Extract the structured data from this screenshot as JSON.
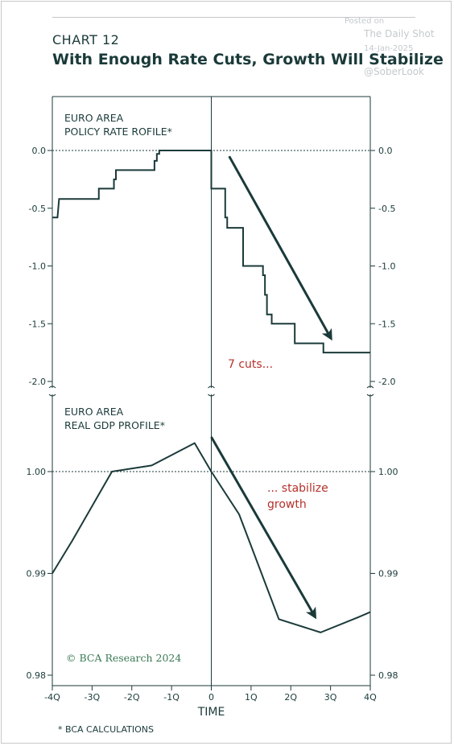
{
  "header": {
    "chart_number": "CHART 12",
    "title": "With Enough Rate Cuts, Growth Will Stabilize"
  },
  "watermark": {
    "posted_on": "Posted on",
    "source": "The Daily Shot",
    "date": "14-Jan-2025",
    "handle": "@SoberLook"
  },
  "footnote": "* BCA CALCULATIONS",
  "credit": "© BCA Research 2024",
  "colors": {
    "line": "#1b3a3a",
    "annotation": "#b5312b",
    "credit": "#3a7a55",
    "frame": "#1b3a3a"
  },
  "chart_data": [
    {
      "type": "line",
      "panel_label_line1": "EURO AREA",
      "panel_label_line2": "POLICY RATE ROFILE*",
      "yticks": [
        0.0,
        -0.5,
        -1.0,
        -1.5,
        -2.0
      ],
      "ytick_labels": [
        "0.0",
        "-0.5",
        "-1.0",
        "-1.5",
        "-2.0"
      ],
      "ylim": [
        -2.0,
        0.0
      ],
      "xlim": [
        -4,
        4
      ],
      "reference_line": 0.0,
      "series": [
        {
          "x": [
            -4.0,
            -3.87,
            -3.87,
            -3.83,
            -3.83,
            -2.83,
            -2.83,
            -2.45,
            -2.45,
            -2.4,
            -2.4,
            -2.34,
            -2.34,
            -1.43,
            -1.43,
            -1.37,
            -1.37,
            -1.31,
            -1.31,
            0.0,
            0.0,
            0.35,
            0.35,
            0.4,
            0.4,
            0.48,
            0.48,
            0.8,
            0.8,
            1.3,
            1.3,
            1.35,
            1.35,
            1.4,
            1.4,
            1.52,
            1.52,
            1.72,
            1.72,
            2.1,
            2.1,
            2.82,
            2.82,
            4.0
          ],
          "y": [
            -0.58,
            -0.58,
            -0.58,
            -0.42,
            -0.42,
            -0.42,
            -0.33,
            -0.33,
            -0.25,
            -0.25,
            -0.17,
            -0.17,
            -0.17,
            -0.17,
            -0.09,
            -0.09,
            -0.03,
            -0.03,
            0.0,
            0.0,
            -0.33,
            -0.33,
            -0.58,
            -0.58,
            -0.67,
            -0.67,
            -0.67,
            -0.67,
            -1.0,
            -1.0,
            -1.08,
            -1.08,
            -1.25,
            -1.25,
            -1.42,
            -1.42,
            -1.5,
            -1.5,
            -1.5,
            -1.5,
            -1.67,
            -1.67,
            -1.75,
            -1.75
          ]
        }
      ],
      "arrow": {
        "from": [
          0.45,
          -0.05
        ],
        "to": [
          3.0,
          -1.62
        ]
      },
      "annotation": "7 cuts..."
    },
    {
      "type": "line",
      "panel_label_line1": "EURO AREA",
      "panel_label_line2": "REAL GDP PROFILE*",
      "yticks": [
        0.98,
        0.99,
        1.0
      ],
      "ytick_labels": [
        "0.98",
        "0.99",
        "1.00"
      ],
      "ylim": [
        0.98,
        1.0
      ],
      "xlim": [
        -4,
        4
      ],
      "reference_line": 1.0,
      "series": [
        {
          "x": [
            -4.0,
            -3.5,
            -2.5,
            -1.5,
            -0.42,
            0.0,
            0.7,
            1.7,
            2.75,
            3.7,
            4.0
          ],
          "y": [
            0.99,
            0.9932,
            1.0,
            1.0006,
            1.0028,
            1.0,
            0.9958,
            0.9855,
            0.9842,
            0.9857,
            0.9862
          ]
        }
      ],
      "arrow": {
        "from": [
          0.0,
          1.0034
        ],
        "to": [
          2.6,
          0.9858
        ]
      },
      "annotation_line1": "... stabilize",
      "annotation_line2": "growth"
    }
  ],
  "x_axis": {
    "ticks": [
      -4,
      -3,
      -2,
      -1,
      0,
      1,
      2,
      3,
      4
    ],
    "tick_labels": [
      "-4Q",
      "-3Q",
      "-2Q",
      "-1Q",
      "0",
      "1Q",
      "2Q",
      "3Q",
      "4Q"
    ],
    "label": "TIME"
  }
}
